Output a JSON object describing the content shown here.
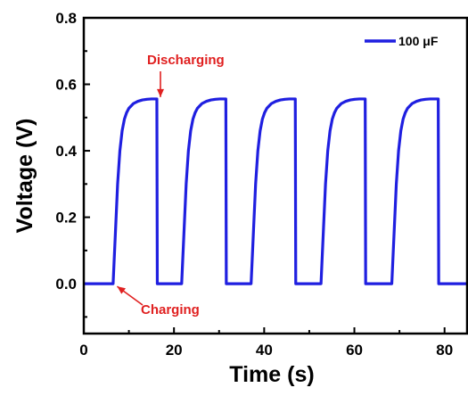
{
  "chart_data": {
    "type": "line",
    "xlabel": "Time (s)",
    "ylabel": "Voltage (V)",
    "xlim": [
      0,
      85
    ],
    "ylim": [
      -0.15,
      0.8
    ],
    "xticks": [
      0,
      20,
      40,
      60,
      80
    ],
    "xtick_labels": [
      "0",
      "20",
      "40",
      "60",
      "80"
    ],
    "yticks": [
      0.0,
      0.2,
      0.4,
      0.6,
      0.8
    ],
    "ytick_labels": [
      "0.0",
      "0.2",
      "0.4",
      "0.6",
      "0.8"
    ],
    "grid": false,
    "legend_position": "top-right",
    "series": [
      {
        "name": "100 μF",
        "color": "#1f1fe0",
        "x": [
          0,
          6.5,
          7.0,
          7.5,
          8.0,
          8.5,
          9.0,
          9.5,
          10.0,
          11.0,
          12.0,
          13.0,
          14.0,
          15.0,
          16.2,
          16.3,
          21.7,
          22.2,
          22.7,
          23.2,
          23.7,
          24.2,
          24.7,
          25.2,
          26.2,
          27.2,
          28.2,
          29.2,
          30.2,
          31.5,
          31.6,
          37.1,
          37.6,
          38.1,
          38.6,
          39.1,
          39.6,
          40.1,
          40.6,
          41.6,
          42.6,
          43.6,
          44.6,
          45.6,
          46.9,
          47.0,
          52.6,
          53.1,
          53.6,
          54.1,
          54.6,
          55.1,
          55.6,
          56.1,
          57.1,
          58.1,
          59.1,
          60.1,
          61.1,
          62.4,
          62.5,
          68.3,
          68.8,
          69.3,
          69.8,
          70.3,
          70.8,
          71.3,
          71.8,
          72.8,
          73.8,
          74.8,
          75.8,
          76.8,
          78.6,
          78.7,
          85
        ],
        "y": [
          0.0,
          0.0,
          0.15,
          0.3,
          0.4,
          0.46,
          0.495,
          0.515,
          0.528,
          0.542,
          0.549,
          0.553,
          0.555,
          0.556,
          0.556,
          0.0,
          0.0,
          0.15,
          0.3,
          0.4,
          0.46,
          0.495,
          0.515,
          0.528,
          0.542,
          0.549,
          0.553,
          0.555,
          0.556,
          0.556,
          0.0,
          0.0,
          0.15,
          0.3,
          0.4,
          0.46,
          0.495,
          0.515,
          0.528,
          0.542,
          0.549,
          0.553,
          0.555,
          0.556,
          0.556,
          0.0,
          0.0,
          0.15,
          0.3,
          0.4,
          0.46,
          0.495,
          0.515,
          0.528,
          0.542,
          0.549,
          0.553,
          0.555,
          0.556,
          0.556,
          0.0,
          0.0,
          0.15,
          0.3,
          0.4,
          0.46,
          0.495,
          0.515,
          0.528,
          0.542,
          0.549,
          0.553,
          0.555,
          0.556,
          0.556,
          0.0,
          0.0
        ]
      }
    ],
    "annotations": [
      {
        "text": "Discharging",
        "color": "#e02020",
        "target": {
          "x": 16.2,
          "y": 0.556
        }
      },
      {
        "text": "Charging",
        "color": "#e02020",
        "target": {
          "x": 6.8,
          "y": 0.0
        }
      }
    ]
  }
}
